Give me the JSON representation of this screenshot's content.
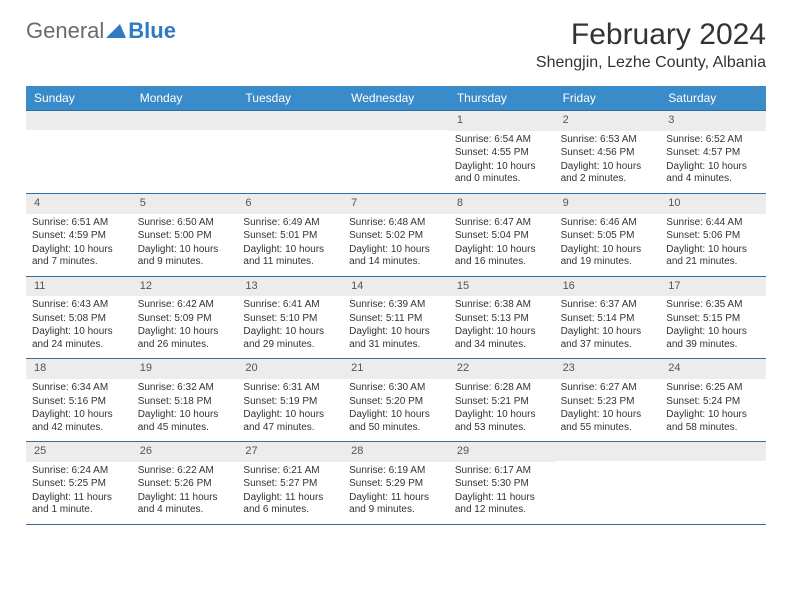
{
  "logo": {
    "text1": "General",
    "text2": "Blue"
  },
  "title": "February 2024",
  "location": "Shengjin, Lezhe County, Albania",
  "colors": {
    "header_bg": "#3a8bc9",
    "header_text": "#ffffff",
    "border": "#2f6ea3",
    "daynum_bg": "#ececec",
    "text": "#333333",
    "logo_gray": "#6b6b6b",
    "logo_blue": "#2f7ac0"
  },
  "day_labels": [
    "Sunday",
    "Monday",
    "Tuesday",
    "Wednesday",
    "Thursday",
    "Friday",
    "Saturday"
  ],
  "weeks": [
    [
      null,
      null,
      null,
      null,
      {
        "n": "1",
        "sr": "Sunrise: 6:54 AM",
        "ss": "Sunset: 4:55 PM",
        "dl": "Daylight: 10 hours and 0 minutes."
      },
      {
        "n": "2",
        "sr": "Sunrise: 6:53 AM",
        "ss": "Sunset: 4:56 PM",
        "dl": "Daylight: 10 hours and 2 minutes."
      },
      {
        "n": "3",
        "sr": "Sunrise: 6:52 AM",
        "ss": "Sunset: 4:57 PM",
        "dl": "Daylight: 10 hours and 4 minutes."
      }
    ],
    [
      {
        "n": "4",
        "sr": "Sunrise: 6:51 AM",
        "ss": "Sunset: 4:59 PM",
        "dl": "Daylight: 10 hours and 7 minutes."
      },
      {
        "n": "5",
        "sr": "Sunrise: 6:50 AM",
        "ss": "Sunset: 5:00 PM",
        "dl": "Daylight: 10 hours and 9 minutes."
      },
      {
        "n": "6",
        "sr": "Sunrise: 6:49 AM",
        "ss": "Sunset: 5:01 PM",
        "dl": "Daylight: 10 hours and 11 minutes."
      },
      {
        "n": "7",
        "sr": "Sunrise: 6:48 AM",
        "ss": "Sunset: 5:02 PM",
        "dl": "Daylight: 10 hours and 14 minutes."
      },
      {
        "n": "8",
        "sr": "Sunrise: 6:47 AM",
        "ss": "Sunset: 5:04 PM",
        "dl": "Daylight: 10 hours and 16 minutes."
      },
      {
        "n": "9",
        "sr": "Sunrise: 6:46 AM",
        "ss": "Sunset: 5:05 PM",
        "dl": "Daylight: 10 hours and 19 minutes."
      },
      {
        "n": "10",
        "sr": "Sunrise: 6:44 AM",
        "ss": "Sunset: 5:06 PM",
        "dl": "Daylight: 10 hours and 21 minutes."
      }
    ],
    [
      {
        "n": "11",
        "sr": "Sunrise: 6:43 AM",
        "ss": "Sunset: 5:08 PM",
        "dl": "Daylight: 10 hours and 24 minutes."
      },
      {
        "n": "12",
        "sr": "Sunrise: 6:42 AM",
        "ss": "Sunset: 5:09 PM",
        "dl": "Daylight: 10 hours and 26 minutes."
      },
      {
        "n": "13",
        "sr": "Sunrise: 6:41 AM",
        "ss": "Sunset: 5:10 PM",
        "dl": "Daylight: 10 hours and 29 minutes."
      },
      {
        "n": "14",
        "sr": "Sunrise: 6:39 AM",
        "ss": "Sunset: 5:11 PM",
        "dl": "Daylight: 10 hours and 31 minutes."
      },
      {
        "n": "15",
        "sr": "Sunrise: 6:38 AM",
        "ss": "Sunset: 5:13 PM",
        "dl": "Daylight: 10 hours and 34 minutes."
      },
      {
        "n": "16",
        "sr": "Sunrise: 6:37 AM",
        "ss": "Sunset: 5:14 PM",
        "dl": "Daylight: 10 hours and 37 minutes."
      },
      {
        "n": "17",
        "sr": "Sunrise: 6:35 AM",
        "ss": "Sunset: 5:15 PM",
        "dl": "Daylight: 10 hours and 39 minutes."
      }
    ],
    [
      {
        "n": "18",
        "sr": "Sunrise: 6:34 AM",
        "ss": "Sunset: 5:16 PM",
        "dl": "Daylight: 10 hours and 42 minutes."
      },
      {
        "n": "19",
        "sr": "Sunrise: 6:32 AM",
        "ss": "Sunset: 5:18 PM",
        "dl": "Daylight: 10 hours and 45 minutes."
      },
      {
        "n": "20",
        "sr": "Sunrise: 6:31 AM",
        "ss": "Sunset: 5:19 PM",
        "dl": "Daylight: 10 hours and 47 minutes."
      },
      {
        "n": "21",
        "sr": "Sunrise: 6:30 AM",
        "ss": "Sunset: 5:20 PM",
        "dl": "Daylight: 10 hours and 50 minutes."
      },
      {
        "n": "22",
        "sr": "Sunrise: 6:28 AM",
        "ss": "Sunset: 5:21 PM",
        "dl": "Daylight: 10 hours and 53 minutes."
      },
      {
        "n": "23",
        "sr": "Sunrise: 6:27 AM",
        "ss": "Sunset: 5:23 PM",
        "dl": "Daylight: 10 hours and 55 minutes."
      },
      {
        "n": "24",
        "sr": "Sunrise: 6:25 AM",
        "ss": "Sunset: 5:24 PM",
        "dl": "Daylight: 10 hours and 58 minutes."
      }
    ],
    [
      {
        "n": "25",
        "sr": "Sunrise: 6:24 AM",
        "ss": "Sunset: 5:25 PM",
        "dl": "Daylight: 11 hours and 1 minute."
      },
      {
        "n": "26",
        "sr": "Sunrise: 6:22 AM",
        "ss": "Sunset: 5:26 PM",
        "dl": "Daylight: 11 hours and 4 minutes."
      },
      {
        "n": "27",
        "sr": "Sunrise: 6:21 AM",
        "ss": "Sunset: 5:27 PM",
        "dl": "Daylight: 11 hours and 6 minutes."
      },
      {
        "n": "28",
        "sr": "Sunrise: 6:19 AM",
        "ss": "Sunset: 5:29 PM",
        "dl": "Daylight: 11 hours and 9 minutes."
      },
      {
        "n": "29",
        "sr": "Sunrise: 6:17 AM",
        "ss": "Sunset: 5:30 PM",
        "dl": "Daylight: 11 hours and 12 minutes."
      },
      null,
      null
    ]
  ]
}
